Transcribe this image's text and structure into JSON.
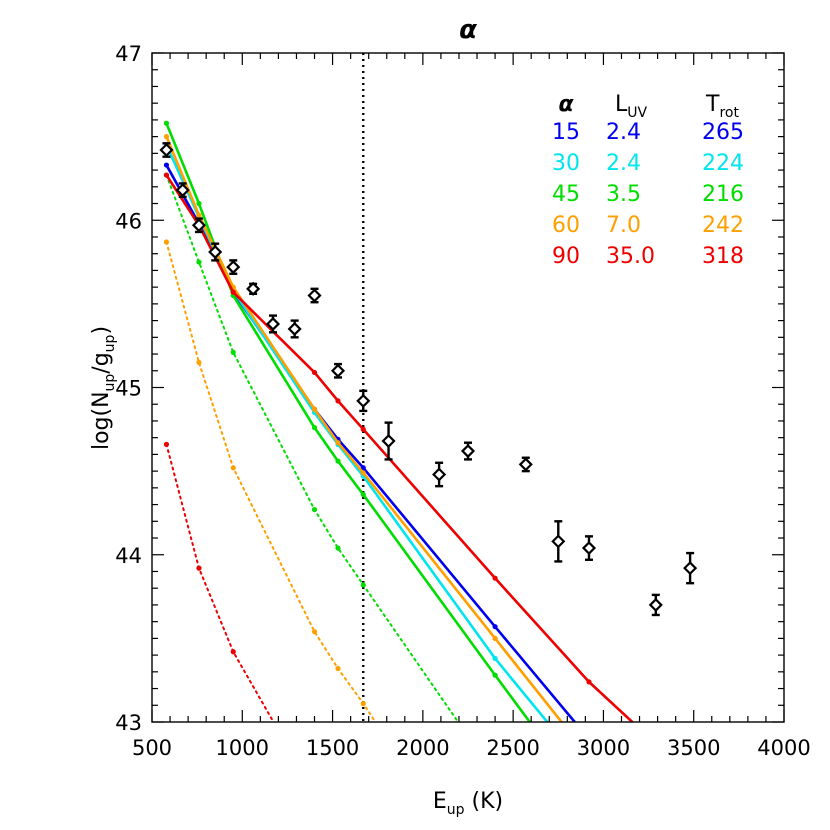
{
  "chart_data": {
    "type": "line",
    "title": "α",
    "xlabel": {
      "main": "E",
      "sub": "up",
      "rest": " (K)"
    },
    "ylabel": {
      "p1": "log(N",
      "s1": "up",
      "p2": "/g",
      "s2": "up",
      "p3": ")"
    },
    "xlim": [
      500,
      4000
    ],
    "ylim": [
      43,
      47
    ],
    "xticks": [
      500,
      1000,
      1500,
      2000,
      2500,
      3000,
      3500,
      4000
    ],
    "yticks": [
      43,
      44,
      45,
      46,
      47
    ],
    "grid": false,
    "vline_x": 1670,
    "legend": {
      "placement": "top-right",
      "headers": {
        "alpha": "α",
        "luv_main": "L",
        "luv_sub": "UV",
        "trot_main": "T",
        "trot_sub": "rot"
      },
      "rows": [
        {
          "alpha": "15",
          "luv": "2.4",
          "trot": "265",
          "color": "#0000ee"
        },
        {
          "alpha": "30",
          "luv": "2.4",
          "trot": "224",
          "color": "#00e5ee"
        },
        {
          "alpha": "45",
          "luv": "3.5",
          "trot": "216",
          "color": "#00dd00"
        },
        {
          "alpha": "60",
          "luv": "7.0",
          "trot": "242",
          "color": "#ff9f00"
        },
        {
          "alpha": "90",
          "luv": "35.0",
          "trot": "318",
          "color": "#ee0000"
        }
      ]
    },
    "solid_series": [
      {
        "color": "#0000ee",
        "points": [
          [
            580,
            46.33
          ],
          [
            760,
            45.98
          ],
          [
            950,
            45.57
          ],
          [
            1400,
            44.87
          ],
          [
            1530,
            44.69
          ],
          [
            1670,
            44.52
          ],
          [
            2400,
            43.57
          ],
          [
            2880,
            42.95
          ]
        ]
      },
      {
        "color": "#00e5ee",
        "points": [
          [
            580,
            46.45
          ],
          [
            760,
            46.02
          ],
          [
            950,
            45.58
          ],
          [
            1400,
            44.85
          ],
          [
            1530,
            44.66
          ],
          [
            1670,
            44.47
          ],
          [
            2400,
            43.38
          ],
          [
            2750,
            42.92
          ]
        ]
      },
      {
        "color": "#00dd00",
        "points": [
          [
            580,
            46.58
          ],
          [
            760,
            46.1
          ],
          [
            950,
            45.55
          ],
          [
            1400,
            44.76
          ],
          [
            1530,
            44.56
          ],
          [
            1670,
            44.36
          ],
          [
            2400,
            43.28
          ],
          [
            2640,
            42.93
          ]
        ]
      },
      {
        "color": "#ff9f00",
        "points": [
          [
            580,
            46.5
          ],
          [
            760,
            46.03
          ],
          [
            950,
            45.6
          ],
          [
            1400,
            44.87
          ],
          [
            1530,
            44.67
          ],
          [
            1670,
            44.49
          ],
          [
            2400,
            43.5
          ],
          [
            2820,
            42.93
          ]
        ]
      },
      {
        "color": "#ee0000",
        "points": [
          [
            580,
            46.27
          ],
          [
            760,
            45.97
          ],
          [
            950,
            45.57
          ],
          [
            1400,
            45.09
          ],
          [
            1530,
            44.92
          ],
          [
            1670,
            44.75
          ],
          [
            2400,
            43.86
          ],
          [
            2920,
            43.24
          ],
          [
            3230,
            42.93
          ]
        ]
      }
    ],
    "dotted_series": [
      {
        "color": "#00dd00",
        "points": [
          [
            580,
            46.27
          ],
          [
            760,
            45.75
          ],
          [
            950,
            45.21
          ],
          [
            1400,
            44.27
          ],
          [
            1530,
            44.04
          ],
          [
            1670,
            43.82
          ],
          [
            2240,
            42.93
          ]
        ]
      },
      {
        "color": "#ff9f00",
        "points": [
          [
            580,
            45.87
          ],
          [
            760,
            45.15
          ],
          [
            950,
            44.52
          ],
          [
            1400,
            43.54
          ],
          [
            1530,
            43.32
          ],
          [
            1670,
            43.11
          ],
          [
            1780,
            42.93
          ]
        ]
      },
      {
        "color": "#ee0000",
        "points": [
          [
            580,
            44.66
          ],
          [
            760,
            43.92
          ],
          [
            950,
            43.42
          ],
          [
            1210,
            42.93
          ]
        ]
      }
    ],
    "observations": [
      {
        "x": 580,
        "y": 46.42,
        "err": 0.04
      },
      {
        "x": 670,
        "y": 46.18,
        "err": 0.04
      },
      {
        "x": 760,
        "y": 45.97,
        "err": 0.04
      },
      {
        "x": 850,
        "y": 45.81,
        "err": 0.05
      },
      {
        "x": 950,
        "y": 45.72,
        "err": 0.04
      },
      {
        "x": 1060,
        "y": 45.59,
        "err": 0.03
      },
      {
        "x": 1170,
        "y": 45.38,
        "err": 0.05
      },
      {
        "x": 1290,
        "y": 45.35,
        "err": 0.05
      },
      {
        "x": 1400,
        "y": 45.55,
        "err": 0.04
      },
      {
        "x": 1530,
        "y": 45.1,
        "err": 0.04
      },
      {
        "x": 1670,
        "y": 44.92,
        "err": 0.06
      },
      {
        "x": 1810,
        "y": 44.68,
        "err": 0.11
      },
      {
        "x": 2090,
        "y": 44.48,
        "err": 0.07
      },
      {
        "x": 2250,
        "y": 44.62,
        "err": 0.05
      },
      {
        "x": 2570,
        "y": 44.54,
        "err": 0.04
      },
      {
        "x": 2750,
        "y": 44.08,
        "err": 0.12
      },
      {
        "x": 2920,
        "y": 44.04,
        "err": 0.07
      },
      {
        "x": 3290,
        "y": 43.7,
        "err": 0.06
      },
      {
        "x": 3480,
        "y": 43.92,
        "err": 0.09
      }
    ]
  }
}
